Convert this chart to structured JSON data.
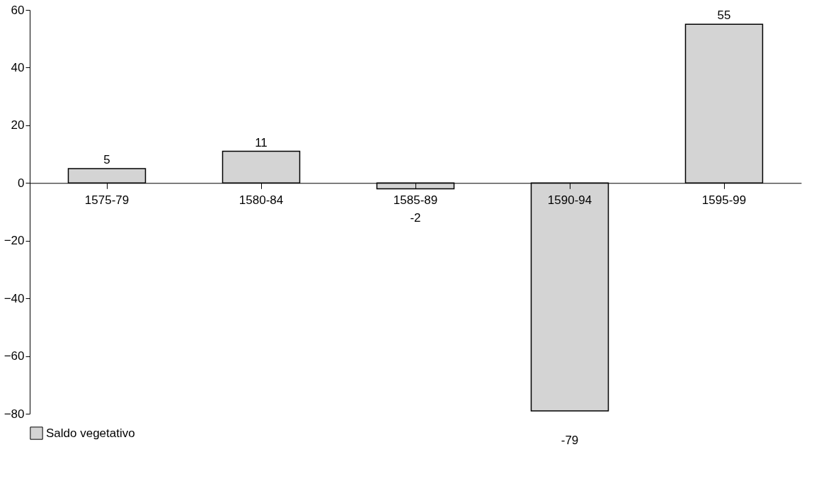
{
  "chart_data": {
    "type": "bar",
    "categories": [
      "1575-79",
      "1580-84",
      "1585-89",
      "1590-94",
      "1595-99"
    ],
    "series": [
      {
        "name": "Saldo vegetativo",
        "color": "#d4d4d4",
        "values": [
          5,
          11,
          -2,
          -79,
          55
        ]
      }
    ],
    "ylim": [
      -80,
      60
    ],
    "yticks": [
      -80,
      -60,
      -40,
      -20,
      0,
      20,
      40,
      60
    ],
    "data_labels": true,
    "legend": "bottom",
    "grid": false
  }
}
